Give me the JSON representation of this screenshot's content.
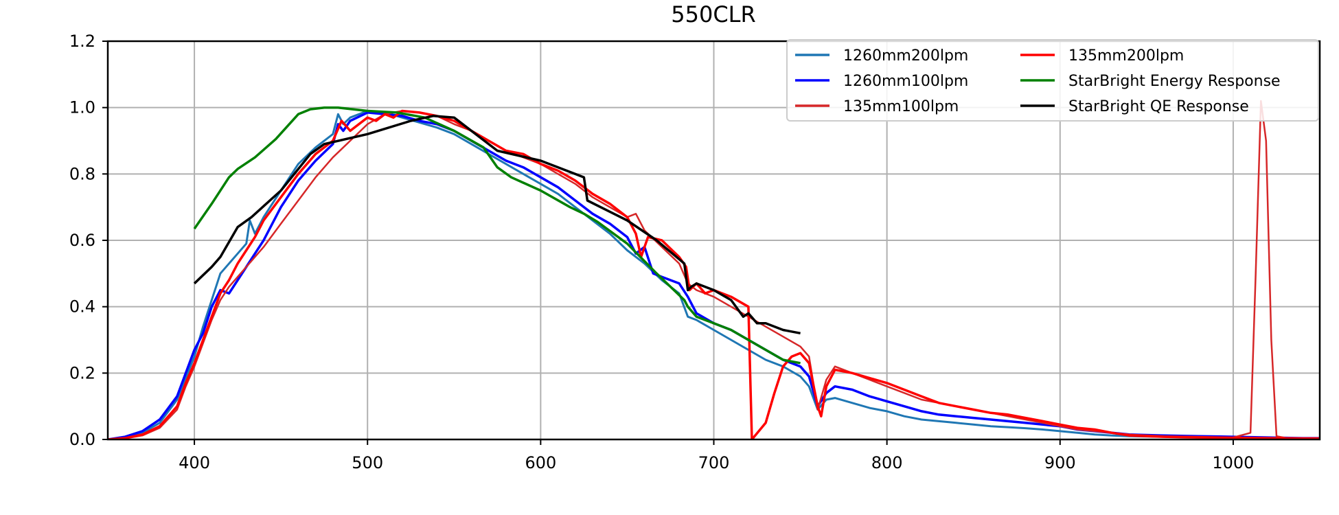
{
  "chart_data": {
    "type": "line",
    "title": "550CLR",
    "xlabel": "",
    "ylabel": "",
    "xlim": [
      350,
      1050
    ],
    "ylim": [
      0.0,
      1.2
    ],
    "grid": true,
    "x_ticks": [
      400,
      500,
      600,
      700,
      800,
      900,
      1000
    ],
    "y_ticks": [
      "0.0",
      "0.2",
      "0.4",
      "0.6",
      "0.8",
      "1.0",
      "1.2"
    ],
    "legend": {
      "position": "top-right",
      "columns": 2,
      "entries": [
        "1260mm200lpm",
        "1260mm100lpm",
        "135mm100lpm",
        "135mm200lpm",
        "StarBright Energy Response",
        "StarBright QE Response"
      ]
    },
    "series": [
      {
        "name": "1260mm200lpm",
        "color": "#1f77b4",
        "width": 3,
        "x": [
          350,
          360,
          370,
          380,
          390,
          400,
          405,
          410,
          415,
          420,
          425,
          430,
          432,
          435,
          440,
          450,
          460,
          470,
          480,
          483,
          486,
          490,
          500,
          510,
          520,
          530,
          540,
          550,
          560,
          570,
          580,
          590,
          600,
          610,
          620,
          630,
          640,
          650,
          660,
          670,
          680,
          685,
          690,
          700,
          710,
          720,
          730,
          740,
          750,
          755,
          760,
          765,
          770,
          780,
          790,
          800,
          810,
          820,
          830,
          840,
          850,
          860,
          870,
          880,
          890,
          900,
          910,
          920,
          930,
          940,
          960,
          980,
          1000,
          1020,
          1040,
          1050
        ],
        "y": [
          0.0,
          0.005,
          0.02,
          0.05,
          0.12,
          0.25,
          0.34,
          0.42,
          0.5,
          0.53,
          0.56,
          0.59,
          0.66,
          0.62,
          0.67,
          0.75,
          0.83,
          0.88,
          0.92,
          0.98,
          0.95,
          0.97,
          0.99,
          0.985,
          0.97,
          0.955,
          0.94,
          0.92,
          0.89,
          0.86,
          0.83,
          0.8,
          0.77,
          0.74,
          0.7,
          0.66,
          0.62,
          0.57,
          0.53,
          0.48,
          0.44,
          0.37,
          0.36,
          0.33,
          0.3,
          0.27,
          0.24,
          0.22,
          0.19,
          0.16,
          0.09,
          0.12,
          0.125,
          0.11,
          0.095,
          0.085,
          0.07,
          0.06,
          0.055,
          0.05,
          0.045,
          0.04,
          0.037,
          0.034,
          0.03,
          0.025,
          0.02,
          0.015,
          0.012,
          0.01,
          0.008,
          0.006,
          0.005,
          0.004,
          0.003,
          0.003
        ]
      },
      {
        "name": "1260mm100lpm",
        "color": "#0000ff",
        "width": 3.5,
        "x": [
          350,
          360,
          370,
          380,
          390,
          400,
          405,
          410,
          415,
          420,
          425,
          430,
          435,
          440,
          450,
          460,
          470,
          480,
          483,
          486,
          490,
          500,
          510,
          520,
          530,
          540,
          550,
          560,
          570,
          580,
          590,
          600,
          610,
          620,
          630,
          640,
          650,
          655,
          660,
          665,
          670,
          680,
          685,
          690,
          700,
          710,
          720,
          730,
          740,
          750,
          755,
          760,
          765,
          770,
          780,
          790,
          800,
          810,
          820,
          830,
          840,
          850,
          860,
          870,
          880,
          890,
          900,
          910,
          920,
          930,
          940,
          960,
          980,
          1000,
          1020,
          1040,
          1050
        ],
        "y": [
          0.0,
          0.008,
          0.025,
          0.06,
          0.13,
          0.27,
          0.32,
          0.4,
          0.45,
          0.44,
          0.48,
          0.52,
          0.56,
          0.6,
          0.7,
          0.78,
          0.84,
          0.89,
          0.95,
          0.93,
          0.96,
          0.985,
          0.98,
          0.975,
          0.96,
          0.95,
          0.93,
          0.9,
          0.87,
          0.84,
          0.82,
          0.79,
          0.76,
          0.72,
          0.68,
          0.65,
          0.61,
          0.56,
          0.58,
          0.5,
          0.49,
          0.47,
          0.43,
          0.38,
          0.35,
          0.33,
          0.3,
          0.27,
          0.24,
          0.22,
          0.19,
          0.1,
          0.14,
          0.16,
          0.15,
          0.13,
          0.115,
          0.1,
          0.085,
          0.075,
          0.07,
          0.065,
          0.06,
          0.055,
          0.05,
          0.045,
          0.04,
          0.03,
          0.025,
          0.02,
          0.015,
          0.012,
          0.01,
          0.008,
          0.006,
          0.004,
          0.004
        ]
      },
      {
        "name": "135mm100lpm",
        "color": "#d62728",
        "width": 2.5,
        "x": [
          350,
          360,
          370,
          380,
          390,
          395,
          400,
          405,
          410,
          415,
          420,
          430,
          440,
          450,
          460,
          470,
          480,
          490,
          500,
          510,
          520,
          530,
          540,
          550,
          560,
          570,
          580,
          590,
          600,
          610,
          620,
          630,
          640,
          650,
          655,
          660,
          670,
          680,
          685,
          690,
          700,
          710,
          720,
          730,
          740,
          750,
          755,
          760,
          765,
          770,
          780,
          790,
          800,
          810,
          820,
          830,
          840,
          850,
          860,
          870,
          880,
          890,
          900,
          910,
          920,
          930,
          940,
          960,
          980,
          1000,
          1010,
          1013,
          1016,
          1019,
          1022,
          1025,
          1030,
          1040,
          1050
        ],
        "y": [
          0.0,
          0.003,
          0.012,
          0.035,
          0.09,
          0.16,
          0.22,
          0.29,
          0.36,
          0.42,
          0.46,
          0.52,
          0.58,
          0.65,
          0.72,
          0.79,
          0.85,
          0.9,
          0.95,
          0.98,
          0.99,
          0.985,
          0.975,
          0.95,
          0.93,
          0.9,
          0.87,
          0.85,
          0.83,
          0.8,
          0.77,
          0.73,
          0.7,
          0.67,
          0.68,
          0.63,
          0.58,
          0.53,
          0.47,
          0.45,
          0.43,
          0.4,
          0.37,
          0.34,
          0.31,
          0.28,
          0.25,
          0.09,
          0.18,
          0.22,
          0.2,
          0.18,
          0.16,
          0.14,
          0.12,
          0.11,
          0.1,
          0.09,
          0.08,
          0.07,
          0.06,
          0.05,
          0.04,
          0.03,
          0.025,
          0.02,
          0.015,
          0.01,
          0.008,
          0.006,
          0.02,
          0.5,
          1.02,
          0.9,
          0.3,
          0.01,
          0.005,
          0.003,
          0.003
        ]
      },
      {
        "name": "135mm200lpm",
        "color": "#ff0000",
        "width": 3.5,
        "x": [
          350,
          360,
          370,
          380,
          390,
          395,
          400,
          405,
          410,
          415,
          420,
          425,
          430,
          435,
          440,
          450,
          460,
          470,
          480,
          485,
          490,
          500,
          505,
          510,
          515,
          520,
          530,
          540,
          550,
          560,
          570,
          580,
          590,
          600,
          610,
          620,
          630,
          640,
          650,
          655,
          658,
          662,
          670,
          680,
          684,
          686,
          690,
          695,
          700,
          710,
          720,
          722,
          730,
          735,
          740,
          745,
          750,
          755,
          760,
          762,
          765,
          770,
          780,
          790,
          800,
          810,
          820,
          830,
          840,
          850,
          860,
          870,
          880,
          890,
          900,
          910,
          920,
          930,
          940,
          960,
          980,
          1000,
          1020,
          1040,
          1050
        ],
        "y": [
          0.0,
          0.004,
          0.015,
          0.04,
          0.1,
          0.17,
          0.23,
          0.3,
          0.37,
          0.44,
          0.48,
          0.53,
          0.57,
          0.61,
          0.66,
          0.73,
          0.8,
          0.86,
          0.9,
          0.96,
          0.93,
          0.97,
          0.96,
          0.98,
          0.97,
          0.99,
          0.985,
          0.975,
          0.96,
          0.93,
          0.9,
          0.87,
          0.86,
          0.83,
          0.81,
          0.78,
          0.74,
          0.71,
          0.67,
          0.62,
          0.55,
          0.61,
          0.6,
          0.55,
          0.52,
          0.45,
          0.47,
          0.44,
          0.45,
          0.43,
          0.4,
          0.0,
          0.05,
          0.14,
          0.22,
          0.25,
          0.26,
          0.23,
          0.1,
          0.07,
          0.16,
          0.21,
          0.2,
          0.185,
          0.17,
          0.15,
          0.13,
          0.11,
          0.1,
          0.09,
          0.08,
          0.075,
          0.065,
          0.055,
          0.045,
          0.035,
          0.03,
          0.02,
          0.012,
          0.008,
          0.006,
          0.005,
          0.004,
          0.003,
          0.003
        ]
      },
      {
        "name": "StarBright Energy Response",
        "color": "#008000",
        "width": 3.5,
        "x": [
          400,
          410,
          420,
          425,
          435,
          447,
          460,
          467,
          475,
          483,
          500,
          517,
          533,
          550,
          567,
          575,
          583,
          600,
          617,
          625,
          633,
          650,
          667,
          683,
          685,
          690,
          700,
          710,
          720,
          730,
          740,
          750
        ],
        "y": [
          0.635,
          0.71,
          0.79,
          0.815,
          0.85,
          0.905,
          0.98,
          0.995,
          1.0,
          1.0,
          0.99,
          0.985,
          0.97,
          0.93,
          0.88,
          0.82,
          0.79,
          0.75,
          0.7,
          0.68,
          0.655,
          0.59,
          0.5,
          0.42,
          0.4,
          0.37,
          0.35,
          0.33,
          0.3,
          0.27,
          0.24,
          0.23
        ]
      },
      {
        "name": "StarBright QE Response",
        "color": "#000000",
        "width": 3.5,
        "x": [
          400,
          410,
          415,
          425,
          433,
          450,
          467,
          475,
          500,
          525,
          538,
          550,
          575,
          600,
          625,
          627,
          650,
          667,
          683,
          685,
          687,
          690,
          700,
          710,
          717,
          720,
          725,
          730,
          740,
          750
        ],
        "y": [
          0.47,
          0.52,
          0.55,
          0.64,
          0.67,
          0.75,
          0.86,
          0.89,
          0.92,
          0.96,
          0.975,
          0.97,
          0.87,
          0.84,
          0.79,
          0.72,
          0.66,
          0.6,
          0.53,
          0.45,
          0.46,
          0.47,
          0.45,
          0.42,
          0.37,
          0.38,
          0.35,
          0.35,
          0.33,
          0.32
        ]
      }
    ]
  }
}
